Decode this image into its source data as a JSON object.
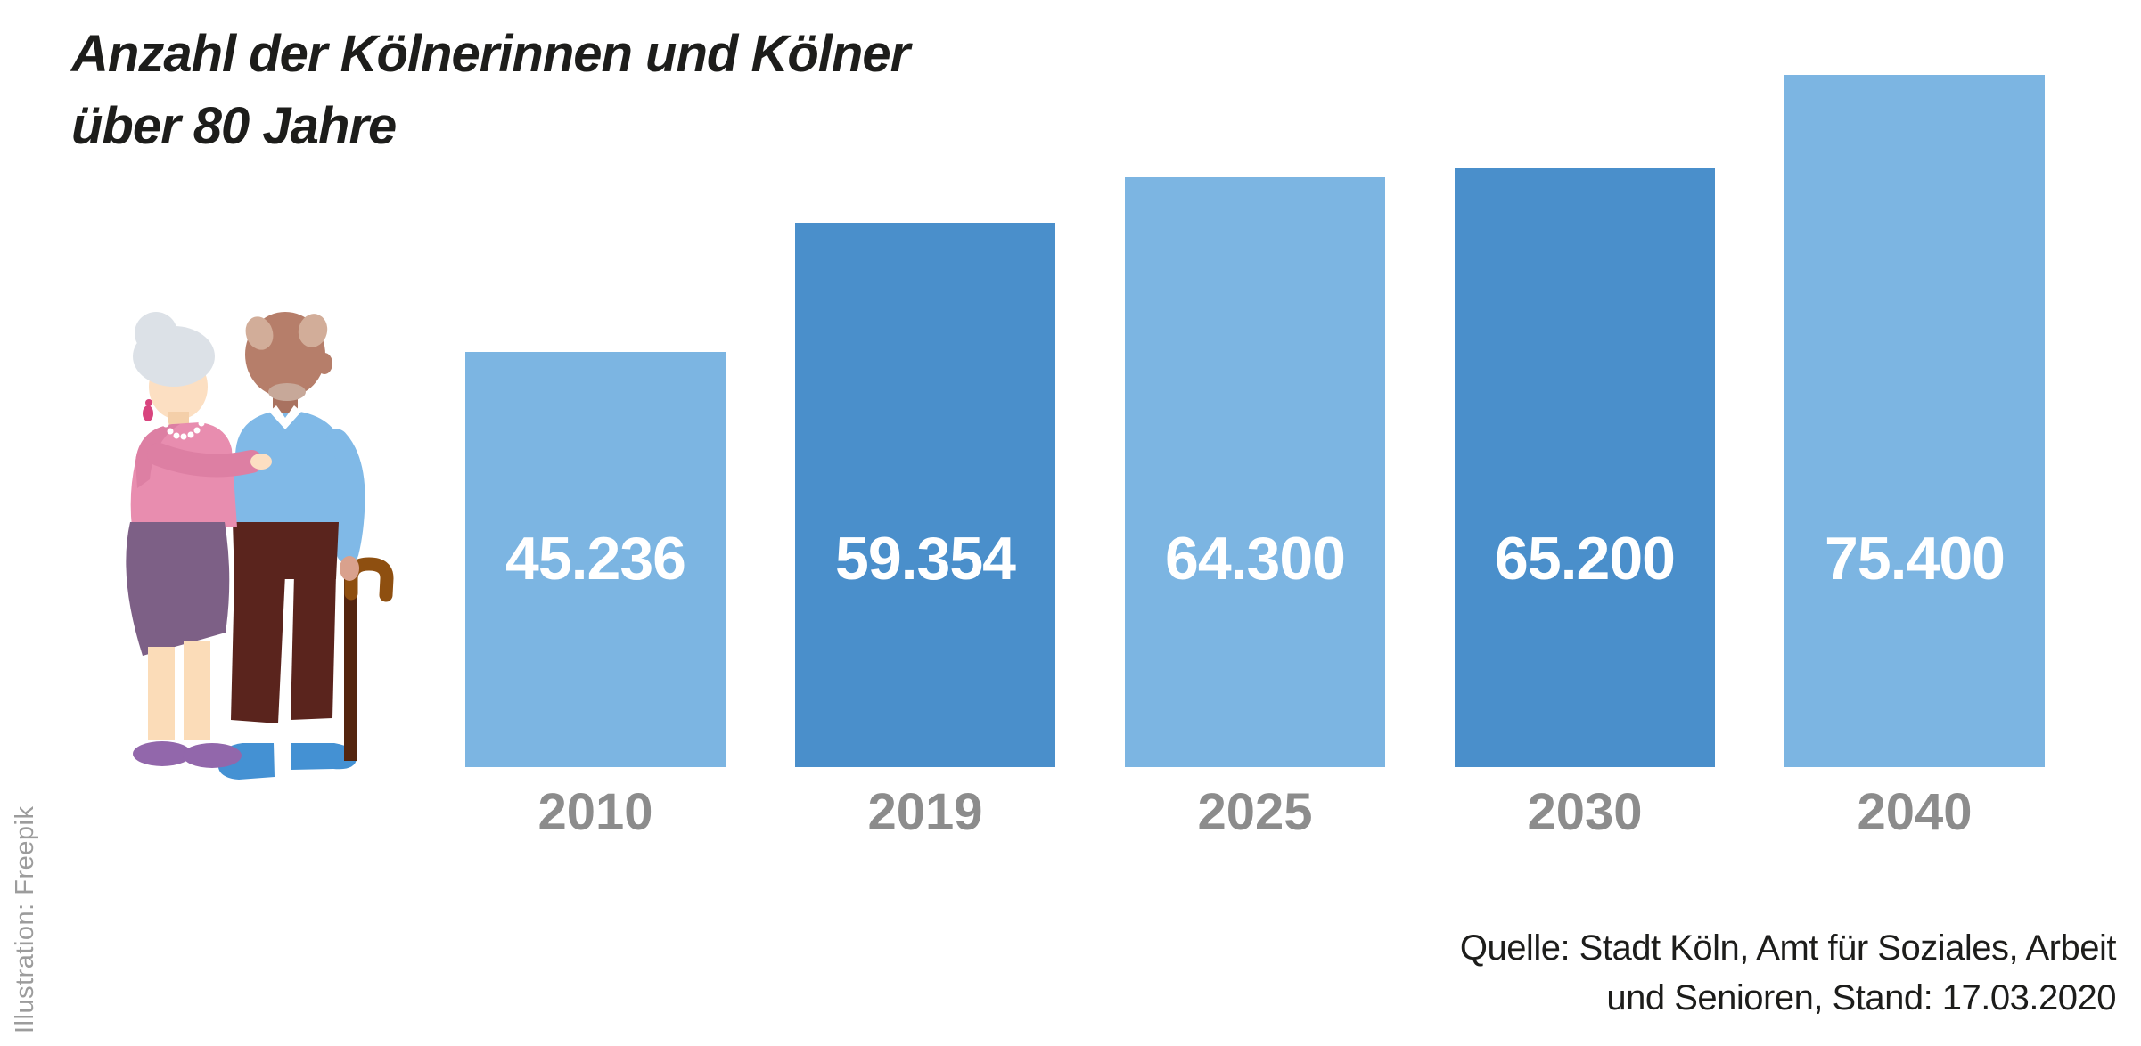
{
  "title": {
    "line1": "Anzahl der Kölnerinnen und Kölner",
    "line2": "über 80 Jahre"
  },
  "credit": "Illustration: Freepik",
  "source": {
    "line1": "Quelle: Stadt Köln, Amt für Soziales, Arbeit",
    "line2": "und Senioren, Stand: 17.03.2020"
  },
  "colors": {
    "bar_light": "#7cb5e2",
    "bar_dark": "#4a8fcb",
    "value_label": "#ffffff",
    "year_label": "#8c8c8c",
    "title_text": "#1d1d1b",
    "credit_text": "#9c9c9c"
  },
  "chart_data": {
    "type": "bar",
    "title": "Anzahl der Kölnerinnen und Kölner über 80 Jahre",
    "categories": [
      "2010",
      "2019",
      "2025",
      "2030",
      "2040"
    ],
    "values": [
      45236,
      59354,
      64300,
      65200,
      75400
    ],
    "value_labels": [
      "45.236",
      "59.354",
      "64.300",
      "65.200",
      "75.400"
    ],
    "bar_color_pattern": [
      "light",
      "dark",
      "light",
      "dark",
      "light"
    ],
    "xlabel": "",
    "ylabel": "",
    "ylim": [
      0,
      80000
    ],
    "grid": false,
    "legend": false,
    "value_label_position": "inside-bar",
    "source_note": "Quelle: Stadt Köln, Amt für Soziales, Arbeit und Senioren, Stand: 17.03.2020"
  }
}
